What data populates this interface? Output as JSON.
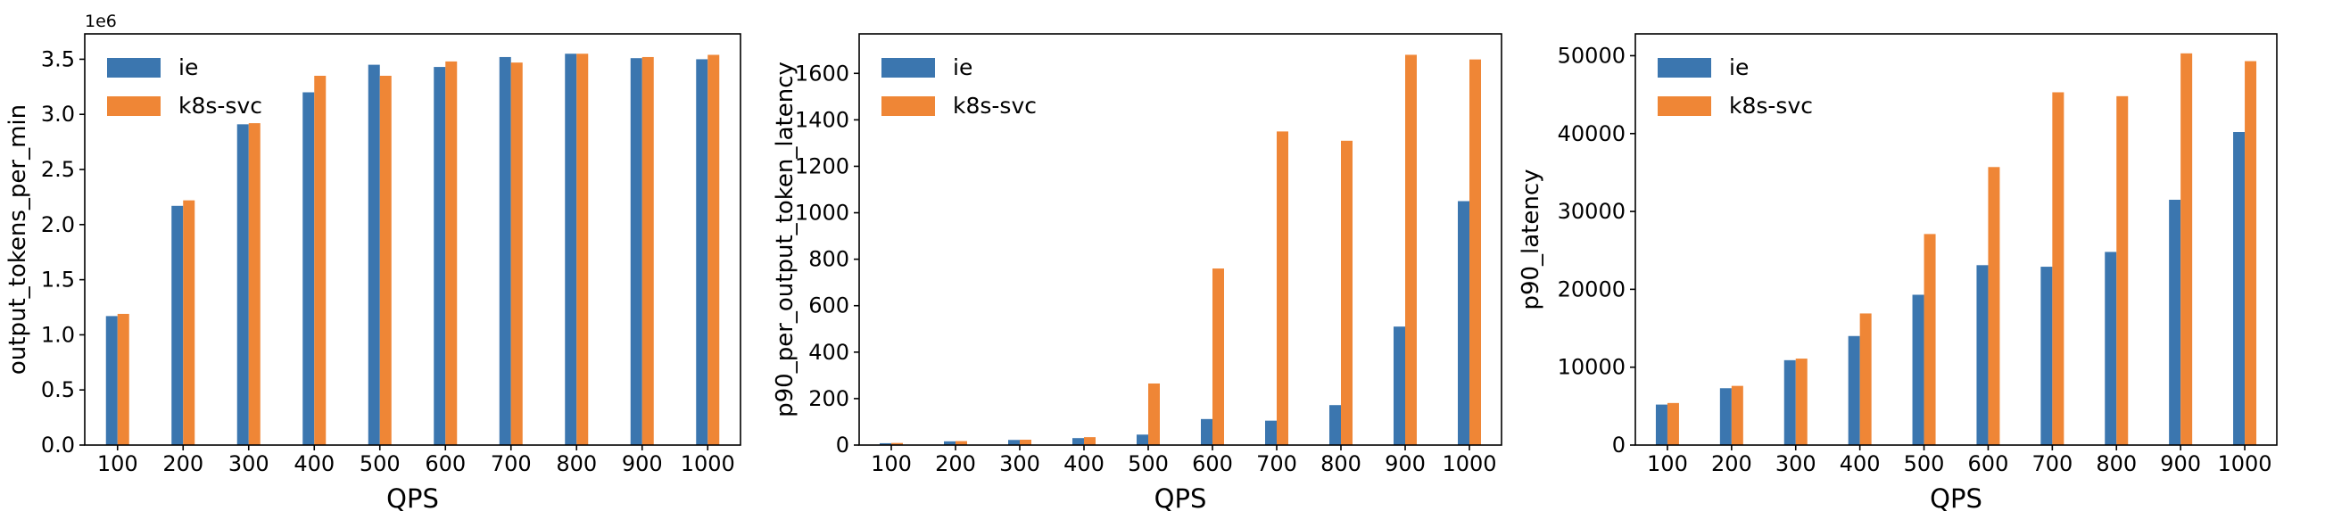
{
  "figure": {
    "background": "#ffffff",
    "series_names": [
      "ie",
      "k8s-svc"
    ],
    "colors": {
      "ie": "#3B76AF",
      "k8s-svc": "#EF8636"
    },
    "legend_position": "upper left"
  },
  "chart_data": [
    {
      "type": "bar",
      "title": "",
      "xlabel": "QPS",
      "ylabel": "output_tokens_per_min",
      "offset_text": "1e6",
      "grid": false,
      "legend_position": "upper left",
      "categories": [
        100,
        200,
        300,
        400,
        500,
        600,
        700,
        800,
        900,
        1000
      ],
      "series": [
        {
          "name": "ie",
          "color": "#3B76AF",
          "values": [
            1170000,
            2170000,
            2910000,
            3200000,
            3450000,
            3430000,
            3520000,
            3550000,
            3510000,
            3500000
          ]
        },
        {
          "name": "k8s-svc",
          "color": "#EF8636",
          "values": [
            1190000,
            2220000,
            2920000,
            3350000,
            3350000,
            3480000,
            3470000,
            3550000,
            3520000,
            3540000
          ]
        }
      ],
      "ylim": [
        0,
        3730000
      ],
      "yticks": [
        0,
        500000,
        1000000,
        1500000,
        2000000,
        2500000,
        3000000,
        3500000
      ],
      "ytick_labels": [
        "0.0",
        "0.5",
        "1.0",
        "1.5",
        "2.0",
        "2.5",
        "3.0",
        "3.5"
      ]
    },
    {
      "type": "bar",
      "title": "",
      "xlabel": "QPS",
      "ylabel": "p90_per_output_token_latency",
      "offset_text": "",
      "grid": false,
      "legend_position": "upper left",
      "categories": [
        100,
        200,
        300,
        400,
        500,
        600,
        700,
        800,
        900,
        1000
      ],
      "series": [
        {
          "name": "ie",
          "color": "#3B76AF",
          "values": [
            8,
            16,
            22,
            30,
            45,
            112,
            105,
            172,
            510,
            1050
          ]
        },
        {
          "name": "k8s-svc",
          "color": "#EF8636",
          "values": [
            9,
            17,
            23,
            34,
            265,
            760,
            1350,
            1310,
            1680,
            1660
          ]
        }
      ],
      "ylim": [
        0,
        1770
      ],
      "yticks": [
        0,
        200,
        400,
        600,
        800,
        1000,
        1200,
        1400,
        1600
      ],
      "ytick_labels": [
        "0",
        "200",
        "400",
        "600",
        "800",
        "1000",
        "1200",
        "1400",
        "1600"
      ]
    },
    {
      "type": "bar",
      "title": "",
      "xlabel": "QPS",
      "ylabel": "p90_latency",
      "offset_text": "",
      "grid": false,
      "legend_position": "upper left",
      "categories": [
        100,
        200,
        300,
        400,
        500,
        600,
        700,
        800,
        900,
        1000
      ],
      "series": [
        {
          "name": "ie",
          "color": "#3B76AF",
          "values": [
            5200,
            7300,
            10900,
            14000,
            19300,
            23100,
            22900,
            24800,
            31500,
            40200
          ]
        },
        {
          "name": "k8s-svc",
          "color": "#EF8636",
          "values": [
            5400,
            7600,
            11100,
            16900,
            27100,
            35700,
            45300,
            44800,
            50300,
            49300
          ]
        }
      ],
      "ylim": [
        0,
        52800
      ],
      "yticks": [
        0,
        10000,
        20000,
        30000,
        40000,
        50000
      ],
      "ytick_labels": [
        "0",
        "10000",
        "20000",
        "30000",
        "40000",
        "50000"
      ]
    }
  ]
}
